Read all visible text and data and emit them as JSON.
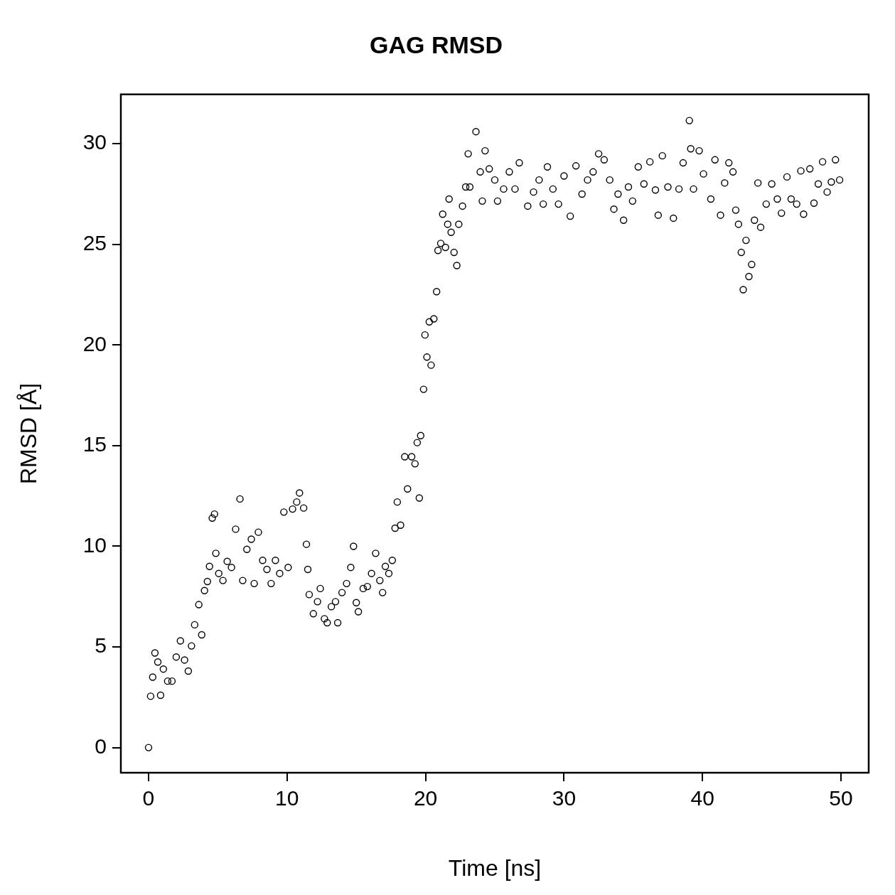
{
  "chart_data": {
    "type": "scatter",
    "title": "GAG RMSD",
    "xlabel": "Time [ns]",
    "ylabel": "RMSD [Å]",
    "xlim": [
      -2,
      52
    ],
    "xticks": [
      0,
      10,
      20,
      30,
      40,
      50
    ],
    "ylim": [
      -1.25,
      32.45
    ],
    "yticks": [
      0,
      5,
      10,
      15,
      20,
      25,
      30
    ],
    "grid": false,
    "legend": false,
    "marker": "circle",
    "series": [
      {
        "color": "#000000",
        "x": [
          0,
          0.15,
          0.3,
          0.46,
          0.67,
          0.87,
          1.07,
          1.38,
          1.69,
          2.0,
          2.3,
          2.6,
          2.87,
          3.1,
          3.33,
          3.63,
          3.84,
          4.04,
          4.25,
          4.4,
          4.6,
          4.76,
          4.86,
          5.07,
          5.37,
          5.68,
          5.99,
          6.29,
          6.6,
          6.8,
          7.1,
          7.42,
          7.63,
          7.93,
          8.24,
          8.55,
          8.85,
          9.16,
          9.47,
          9.77,
          10.08,
          10.4,
          10.7,
          10.9,
          11.2,
          11.4,
          11.5,
          11.6,
          11.9,
          12.2,
          12.4,
          12.7,
          12.9,
          13.2,
          13.5,
          13.66,
          13.97,
          14.3,
          14.6,
          14.8,
          15.0,
          15.15,
          15.5,
          15.8,
          16.1,
          16.4,
          16.7,
          16.9,
          17.1,
          17.35,
          17.6,
          17.8,
          17.96,
          18.2,
          18.5,
          18.7,
          19.0,
          19.24,
          19.4,
          19.55,
          19.65,
          19.86,
          19.96,
          20.1,
          20.27,
          20.4,
          20.6,
          20.8,
          20.9,
          21.1,
          21.24,
          21.44,
          21.6,
          21.7,
          21.85,
          22.06,
          22.26,
          22.4,
          22.67,
          22.9,
          23.08,
          23.2,
          23.64,
          23.95,
          24.1,
          24.3,
          24.6,
          25.0,
          25.2,
          25.64,
          26.05,
          26.46,
          26.77,
          27.38,
          27.8,
          28.2,
          28.5,
          28.8,
          29.2,
          29.6,
          30.0,
          30.45,
          30.86,
          31.3,
          31.7,
          32.1,
          32.5,
          32.9,
          33.3,
          33.6,
          33.9,
          34.3,
          34.65,
          34.95,
          35.36,
          35.77,
          36.2,
          36.6,
          36.8,
          37.1,
          37.5,
          37.9,
          38.3,
          38.6,
          39.05,
          39.15,
          39.35,
          39.76,
          40.07,
          40.6,
          40.9,
          41.3,
          41.6,
          41.9,
          42.2,
          42.4,
          42.6,
          42.8,
          42.94,
          43.14,
          43.35,
          43.55,
          43.75,
          44.0,
          44.2,
          44.6,
          45.0,
          45.4,
          45.7,
          46.1,
          46.4,
          46.8,
          47.1,
          47.3,
          47.75,
          48.05,
          48.36,
          48.67,
          49.0,
          49.3,
          49.6,
          49.9
        ],
        "values": [
          0,
          2.55,
          3.5,
          4.7,
          4.25,
          2.6,
          3.9,
          3.3,
          3.3,
          4.5,
          5.3,
          4.35,
          3.8,
          5.05,
          6.1,
          7.1,
          5.6,
          7.8,
          8.25,
          9.0,
          11.4,
          11.6,
          9.65,
          8.65,
          8.3,
          9.25,
          8.95,
          10.85,
          12.35,
          8.3,
          9.85,
          10.35,
          8.15,
          10.7,
          9.3,
          8.85,
          8.15,
          9.3,
          8.65,
          11.7,
          8.95,
          11.85,
          12.2,
          12.65,
          11.9,
          10.1,
          8.85,
          7.6,
          6.65,
          7.25,
          7.9,
          6.4,
          6.2,
          7.0,
          7.25,
          6.2,
          7.7,
          8.15,
          8.95,
          10.0,
          7.2,
          6.75,
          7.9,
          8.0,
          8.65,
          9.65,
          8.3,
          7.7,
          9.0,
          8.65,
          9.3,
          10.9,
          12.2,
          11.05,
          14.45,
          12.85,
          14.45,
          14.1,
          15.15,
          12.4,
          15.5,
          17.8,
          20.5,
          19.4,
          21.15,
          19.0,
          21.3,
          22.65,
          24.7,
          25.05,
          26.5,
          24.85,
          26.0,
          27.25,
          25.6,
          24.6,
          23.95,
          26.0,
          26.9,
          27.85,
          29.5,
          27.85,
          30.6,
          28.6,
          27.15,
          29.65,
          28.75,
          28.2,
          27.15,
          27.75,
          28.6,
          27.75,
          29.05,
          26.9,
          27.6,
          28.2,
          27.0,
          28.85,
          27.75,
          27.0,
          28.4,
          26.4,
          28.9,
          27.5,
          28.2,
          28.6,
          29.5,
          29.2,
          28.2,
          26.75,
          27.5,
          26.2,
          27.85,
          27.15,
          28.85,
          28.0,
          29.1,
          27.7,
          26.45,
          29.4,
          27.85,
          26.3,
          27.75,
          29.05,
          31.15,
          29.75,
          27.75,
          29.65,
          28.5,
          27.25,
          29.2,
          26.45,
          28.05,
          29.05,
          28.6,
          26.7,
          26.0,
          24.6,
          22.75,
          25.2,
          23.4,
          24.0,
          26.2,
          28.05,
          25.85,
          27.0,
          28.0,
          27.25,
          26.55,
          28.35,
          27.25,
          27.0,
          28.65,
          26.5,
          28.75,
          27.05,
          28.0,
          29.1,
          27.6,
          28.1,
          29.2,
          28.2
        ]
      }
    ]
  }
}
